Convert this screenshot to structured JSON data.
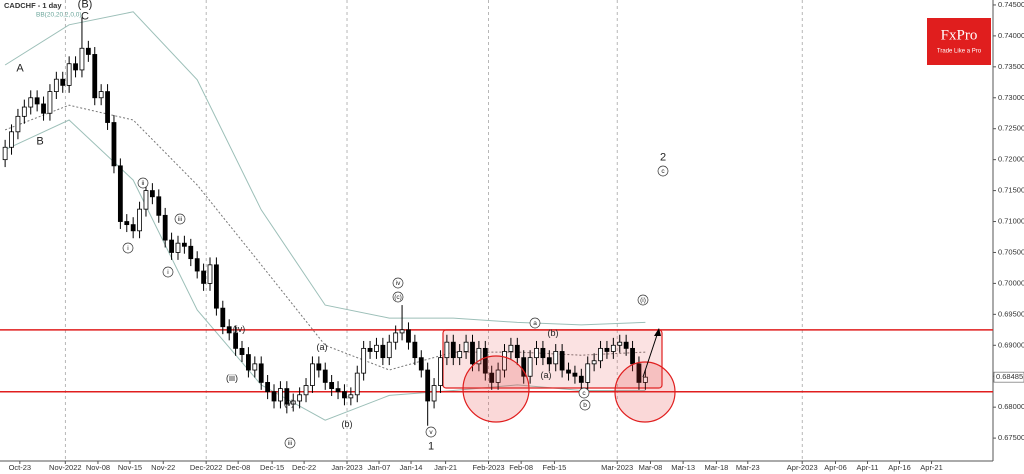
{
  "chart_data": {
    "type": "candlestick",
    "title": "CADCHF - 1 day",
    "subtitle": "BB(20,20,2,0,0)",
    "logo": {
      "name": "FxPro",
      "tagline": "Trade Like a Pro"
    },
    "xlim": [
      -0.8,
      154.3
    ],
    "ylim": [
      0.6713,
      0.7458
    ],
    "yticks": [
      {
        "value": 0.675,
        "label": "0.67500"
      },
      {
        "value": 0.68,
        "label": "0.68000"
      },
      {
        "value": 0.685,
        "label": "0.68500"
      },
      {
        "value": 0.69,
        "label": "0.69000"
      },
      {
        "value": 0.695,
        "label": "0.69500"
      },
      {
        "value": 0.7,
        "label": "0.70000"
      },
      {
        "value": 0.705,
        "label": "0.70500"
      },
      {
        "value": 0.71,
        "label": "0.71000"
      },
      {
        "value": 0.715,
        "label": "0.71500"
      },
      {
        "value": 0.72,
        "label": "0.72000"
      },
      {
        "value": 0.725,
        "label": "0.72500"
      },
      {
        "value": 0.73,
        "label": "0.73000"
      },
      {
        "value": 0.735,
        "label": "0.73500"
      },
      {
        "value": 0.74,
        "label": "0.74000"
      },
      {
        "value": 0.745,
        "label": "0.74500"
      }
    ],
    "xticks": [
      {
        "value": 2.3,
        "label": "Oct-23"
      },
      {
        "value": 9.4,
        "label": "Nov-2022"
      },
      {
        "value": 14.5,
        "label": "Nov-08"
      },
      {
        "value": 19.5,
        "label": "Nov-15"
      },
      {
        "value": 24.7,
        "label": "Nov-22"
      },
      {
        "value": 31.4,
        "label": "Dec-2022"
      },
      {
        "value": 36.4,
        "label": "Dec-08"
      },
      {
        "value": 41.7,
        "label": "Dec-15"
      },
      {
        "value": 46.7,
        "label": "Dec-22"
      },
      {
        "value": 53.4,
        "label": "Jan-2023"
      },
      {
        "value": 58.4,
        "label": "Jan-07"
      },
      {
        "value": 63.4,
        "label": "Jan-14"
      },
      {
        "value": 68.8,
        "label": "Jan-21"
      },
      {
        "value": 75.5,
        "label": "Feb-2023"
      },
      {
        "value": 80.6,
        "label": "Feb-08"
      },
      {
        "value": 85.8,
        "label": "Feb-15"
      },
      {
        "value": 95.6,
        "label": "Mar-2023"
      },
      {
        "value": 100.8,
        "label": "Mar-08"
      },
      {
        "value": 105.9,
        "label": "Mar-13"
      },
      {
        "value": 111.1,
        "label": "Mar-18"
      },
      {
        "value": 116,
        "label": "Mar-23"
      },
      {
        "value": 124.5,
        "label": "Apr-2023"
      },
      {
        "value": 129.7,
        "label": "Apr-06"
      },
      {
        "value": 134.7,
        "label": "Apr-11"
      },
      {
        "value": 139.7,
        "label": "Apr-16"
      },
      {
        "value": 144.7,
        "label": "Apr-21"
      }
    ],
    "ohlc": [
      [
        0.72,
        0.7232,
        0.7188,
        0.722
      ],
      [
        0.722,
        0.7257,
        0.7208,
        0.7245
      ],
      [
        0.7245,
        0.7282,
        0.7233,
        0.727
      ],
      [
        0.727,
        0.7297,
        0.7258,
        0.7285
      ],
      [
        0.7285,
        0.7312,
        0.7273,
        0.73
      ],
      [
        0.73,
        0.7312,
        0.7278,
        0.729
      ],
      [
        0.729,
        0.7302,
        0.7263,
        0.7275
      ],
      [
        0.7275,
        0.7322,
        0.7263,
        0.731
      ],
      [
        0.731,
        0.7342,
        0.7298,
        0.733
      ],
      [
        0.733,
        0.7342,
        0.7308,
        0.732
      ],
      [
        0.732,
        0.7367,
        0.7308,
        0.7355
      ],
      [
        0.7355,
        0.7367,
        0.7333,
        0.7345
      ],
      [
        0.7345,
        0.743,
        0.7333,
        0.738
      ],
      [
        0.738,
        0.7392,
        0.7358,
        0.737
      ],
      [
        0.737,
        0.7382,
        0.7288,
        0.73
      ],
      [
        0.73,
        0.7322,
        0.7288,
        0.731
      ],
      [
        0.731,
        0.7322,
        0.7248,
        0.726
      ],
      [
        0.726,
        0.7272,
        0.7178,
        0.719
      ],
      [
        0.719,
        0.7202,
        0.7088,
        0.71
      ],
      [
        0.71,
        0.7112,
        0.7083,
        0.7095
      ],
      [
        0.7095,
        0.7107,
        0.7073,
        0.7085
      ],
      [
        0.7085,
        0.7132,
        0.7073,
        0.712
      ],
      [
        0.712,
        0.7162,
        0.7108,
        0.715
      ],
      [
        0.715,
        0.7162,
        0.7128,
        0.714
      ],
      [
        0.714,
        0.7152,
        0.7098,
        0.711
      ],
      [
        0.711,
        0.7122,
        0.7058,
        0.707
      ],
      [
        0.707,
        0.7082,
        0.7038,
        0.705
      ],
      [
        0.705,
        0.7077,
        0.7038,
        0.7065
      ],
      [
        0.7065,
        0.7077,
        0.7048,
        0.706
      ],
      [
        0.706,
        0.7072,
        0.7028,
        0.704
      ],
      [
        0.704,
        0.7052,
        0.7008,
        0.702
      ],
      [
        0.702,
        0.7032,
        0.6988,
        0.7
      ],
      [
        0.7,
        0.7042,
        0.6988,
        0.703
      ],
      [
        0.703,
        0.7042,
        0.6948,
        0.696
      ],
      [
        0.696,
        0.6972,
        0.6918,
        0.693
      ],
      [
        0.693,
        0.6942,
        0.6908,
        0.692
      ],
      [
        0.692,
        0.6932,
        0.6883,
        0.6895
      ],
      [
        0.6895,
        0.6907,
        0.6873,
        0.6885
      ],
      [
        0.6885,
        0.6897,
        0.6848,
        0.686
      ],
      [
        0.686,
        0.6882,
        0.6848,
        0.687
      ],
      [
        0.687,
        0.6882,
        0.6828,
        0.684
      ],
      [
        0.684,
        0.6852,
        0.6813,
        0.6825
      ],
      [
        0.6825,
        0.6837,
        0.6798,
        0.681
      ],
      [
        0.681,
        0.6842,
        0.6798,
        0.683
      ],
      [
        0.683,
        0.6842,
        0.679,
        0.6805
      ],
      [
        0.6805,
        0.6822,
        0.6793,
        0.681
      ],
      [
        0.681,
        0.6832,
        0.6798,
        0.682
      ],
      [
        0.682,
        0.6847,
        0.6808,
        0.6835
      ],
      [
        0.6835,
        0.6882,
        0.6823,
        0.687
      ],
      [
        0.687,
        0.6882,
        0.6848,
        0.686
      ],
      [
        0.686,
        0.6872,
        0.6828,
        0.684
      ],
      [
        0.684,
        0.6852,
        0.6818,
        0.683
      ],
      [
        0.683,
        0.6842,
        0.6813,
        0.6825
      ],
      [
        0.6825,
        0.6837,
        0.6803,
        0.6815
      ],
      [
        0.6815,
        0.6832,
        0.6803,
        0.682
      ],
      [
        0.682,
        0.6867,
        0.6808,
        0.6855
      ],
      [
        0.6855,
        0.6907,
        0.6843,
        0.6895
      ],
      [
        0.6895,
        0.6907,
        0.6878,
        0.689
      ],
      [
        0.689,
        0.6912,
        0.6878,
        0.69
      ],
      [
        0.69,
        0.6912,
        0.6868,
        0.688
      ],
      [
        0.688,
        0.6917,
        0.6868,
        0.6905
      ],
      [
        0.6905,
        0.6932,
        0.6893,
        0.692
      ],
      [
        0.692,
        0.6965,
        0.6908,
        0.6925
      ],
      [
        0.6925,
        0.6937,
        0.6893,
        0.6905
      ],
      [
        0.6905,
        0.6917,
        0.6868,
        0.688
      ],
      [
        0.688,
        0.6892,
        0.6848,
        0.686
      ],
      [
        0.686,
        0.6872,
        0.677,
        0.681
      ],
      [
        0.681,
        0.6847,
        0.6798,
        0.6835
      ],
      [
        0.6835,
        0.6892,
        0.6823,
        0.688
      ],
      [
        0.688,
        0.6917,
        0.6868,
        0.6905
      ],
      [
        0.6905,
        0.6917,
        0.6868,
        0.688
      ],
      [
        0.688,
        0.6902,
        0.6868,
        0.689
      ],
      [
        0.689,
        0.6917,
        0.6878,
        0.6905
      ],
      [
        0.6905,
        0.6917,
        0.6858,
        0.687
      ],
      [
        0.687,
        0.6907,
        0.6858,
        0.6895
      ],
      [
        0.6895,
        0.6907,
        0.6843,
        0.6855
      ],
      [
        0.6855,
        0.6867,
        0.6828,
        0.684
      ],
      [
        0.684,
        0.6872,
        0.6828,
        0.686
      ],
      [
        0.686,
        0.6902,
        0.6848,
        0.689
      ],
      [
        0.689,
        0.6912,
        0.6878,
        0.69
      ],
      [
        0.69,
        0.6912,
        0.6868,
        0.688
      ],
      [
        0.688,
        0.6892,
        0.6838,
        0.685
      ],
      [
        0.685,
        0.6892,
        0.6838,
        0.688
      ],
      [
        0.688,
        0.6907,
        0.6868,
        0.6895
      ],
      [
        0.6895,
        0.6907,
        0.6868,
        0.688
      ],
      [
        0.688,
        0.6892,
        0.6858,
        0.687
      ],
      [
        0.687,
        0.6902,
        0.6858,
        0.689
      ],
      [
        0.689,
        0.6902,
        0.6848,
        0.686
      ],
      [
        0.686,
        0.6872,
        0.6843,
        0.6855
      ],
      [
        0.6855,
        0.6867,
        0.6838,
        0.685
      ],
      [
        0.685,
        0.6862,
        0.6828,
        0.684
      ],
      [
        0.684,
        0.6882,
        0.6828,
        0.687
      ],
      [
        0.687,
        0.6887,
        0.6858,
        0.6875
      ],
      [
        0.6875,
        0.6907,
        0.6863,
        0.6895
      ],
      [
        0.6895,
        0.6907,
        0.6878,
        0.689
      ],
      [
        0.689,
        0.6912,
        0.6878,
        0.69
      ],
      [
        0.69,
        0.6917,
        0.6888,
        0.6905
      ],
      [
        0.6905,
        0.6917,
        0.6883,
        0.6895
      ],
      [
        0.6895,
        0.6907,
        0.6858,
        0.687
      ],
      [
        0.687,
        0.6882,
        0.6828,
        0.684
      ],
      [
        0.684,
        0.686,
        0.6828,
        0.68485
      ]
    ],
    "bands": {
      "x": [
        0,
        10,
        20,
        30,
        40,
        50,
        60,
        70,
        80,
        90,
        100
      ],
      "upper": [
        0.7353,
        0.7418,
        0.7439,
        0.7329,
        0.7119,
        0.6965,
        0.6944,
        0.6944,
        0.6937,
        0.6933,
        0.6937
      ],
      "middle": [
        0.7248,
        0.7288,
        0.7264,
        0.7159,
        0.703,
        0.69,
        0.686,
        0.6889,
        0.6889,
        0.6884,
        0.6889
      ],
      "lower": [
        0.7216,
        0.7264,
        0.7167,
        0.6957,
        0.6836,
        0.6779,
        0.6819,
        0.6827,
        0.6836,
        0.6827,
        0.6827
      ]
    },
    "levels": [
      0.6925,
      0.6825
    ],
    "annotations": [
      "A",
      "B",
      "(B)",
      "C",
      "ii",
      "iii",
      "i",
      "i",
      "(iv)",
      "(iii)",
      "(v)",
      "iii",
      "(a)",
      "(b)",
      "iv",
      "(c)",
      "v",
      "1",
      "a",
      "(b)",
      "(a)",
      "c",
      "b",
      "(i)",
      "2",
      "c"
    ]
  }
}
